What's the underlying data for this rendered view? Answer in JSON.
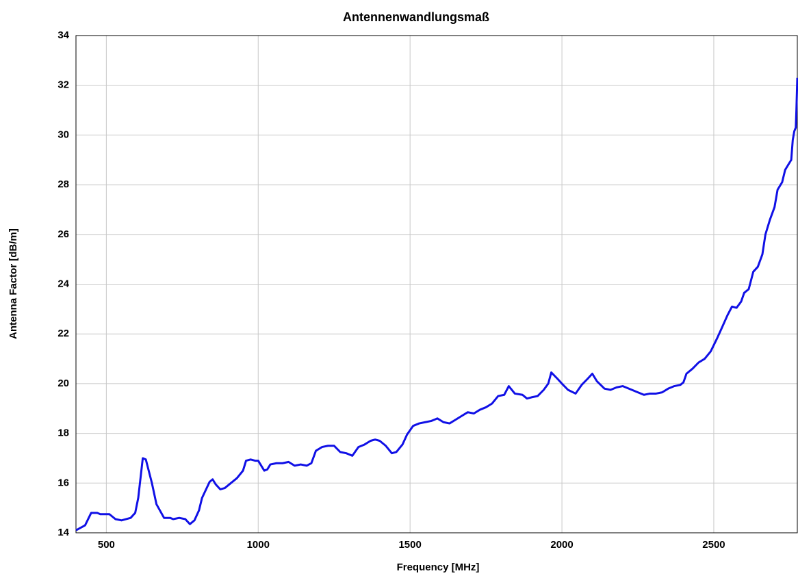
{
  "chart_data": {
    "type": "line",
    "title": "Antennenwandlungsmaß",
    "xlabel": "Frequency [MHz]",
    "ylabel": "Antenna Factor [dB/m]",
    "xlim": [
      400,
      2775
    ],
    "ylim": [
      14,
      34
    ],
    "xticks": [
      500,
      1000,
      1500,
      2000,
      2500
    ],
    "yticks": [
      14,
      16,
      18,
      20,
      22,
      24,
      26,
      28,
      30,
      32,
      34
    ],
    "grid": true,
    "series": [
      {
        "color": "#1010e6",
        "x": [
          400,
          430,
          450,
          470,
          480,
          510,
          530,
          550,
          580,
          595,
          605,
          620,
          630,
          650,
          665,
          690,
          710,
          720,
          740,
          760,
          775,
          790,
          805,
          815,
          840,
          850,
          860,
          875,
          890,
          910,
          930,
          950,
          960,
          975,
          990,
          1000,
          1020,
          1030,
          1040,
          1060,
          1080,
          1100,
          1120,
          1140,
          1160,
          1175,
          1190,
          1210,
          1230,
          1250,
          1270,
          1290,
          1310,
          1330,
          1350,
          1370,
          1385,
          1400,
          1420,
          1440,
          1455,
          1475,
          1490,
          1510,
          1530,
          1550,
          1570,
          1590,
          1610,
          1630,
          1650,
          1670,
          1690,
          1710,
          1730,
          1750,
          1770,
          1790,
          1810,
          1825,
          1845,
          1870,
          1885,
          1900,
          1920,
          1940,
          1955,
          1965,
          1985,
          2000,
          2020,
          2045,
          2065,
          2085,
          2100,
          2115,
          2140,
          2160,
          2180,
          2200,
          2220,
          2250,
          2270,
          2290,
          2310,
          2330,
          2350,
          2370,
          2390,
          2400,
          2410,
          2430,
          2450,
          2470,
          2490,
          2510,
          2525,
          2545,
          2560,
          2575,
          2590,
          2600,
          2615,
          2630,
          2645,
          2660,
          2670,
          2685,
          2700,
          2710,
          2725,
          2735,
          2745,
          2755,
          2760,
          2765,
          2770,
          2772,
          2775
        ],
        "values": [
          14.1,
          14.3,
          14.8,
          14.8,
          14.75,
          14.75,
          14.55,
          14.5,
          14.6,
          14.8,
          15.4,
          17.0,
          16.95,
          16.0,
          15.15,
          14.6,
          14.6,
          14.55,
          14.6,
          14.55,
          14.35,
          14.5,
          14.9,
          15.4,
          16.05,
          16.15,
          15.95,
          15.75,
          15.8,
          16.0,
          16.2,
          16.5,
          16.9,
          16.95,
          16.9,
          16.9,
          16.5,
          16.55,
          16.75,
          16.8,
          16.8,
          16.85,
          16.7,
          16.75,
          16.7,
          16.8,
          17.3,
          17.45,
          17.5,
          17.5,
          17.25,
          17.2,
          17.1,
          17.45,
          17.55,
          17.7,
          17.75,
          17.7,
          17.5,
          17.2,
          17.25,
          17.55,
          17.95,
          18.3,
          18.4,
          18.45,
          18.5,
          18.6,
          18.45,
          18.4,
          18.55,
          18.7,
          18.85,
          18.8,
          18.95,
          19.05,
          19.2,
          19.5,
          19.55,
          19.9,
          19.6,
          19.55,
          19.4,
          19.45,
          19.5,
          19.75,
          20.0,
          20.45,
          20.2,
          20.0,
          19.75,
          19.6,
          19.95,
          20.2,
          20.4,
          20.1,
          19.8,
          19.75,
          19.85,
          19.9,
          19.8,
          19.65,
          19.55,
          19.6,
          19.6,
          19.65,
          19.8,
          19.9,
          19.95,
          20.05,
          20.4,
          20.6,
          20.85,
          21.0,
          21.3,
          21.8,
          22.2,
          22.75,
          23.1,
          23.05,
          23.3,
          23.65,
          23.8,
          24.5,
          24.7,
          25.2,
          26.0,
          26.6,
          27.1,
          27.8,
          28.1,
          28.6,
          28.8,
          29.0,
          29.8,
          30.15,
          30.3,
          31.0,
          32.3
        ]
      }
    ]
  }
}
